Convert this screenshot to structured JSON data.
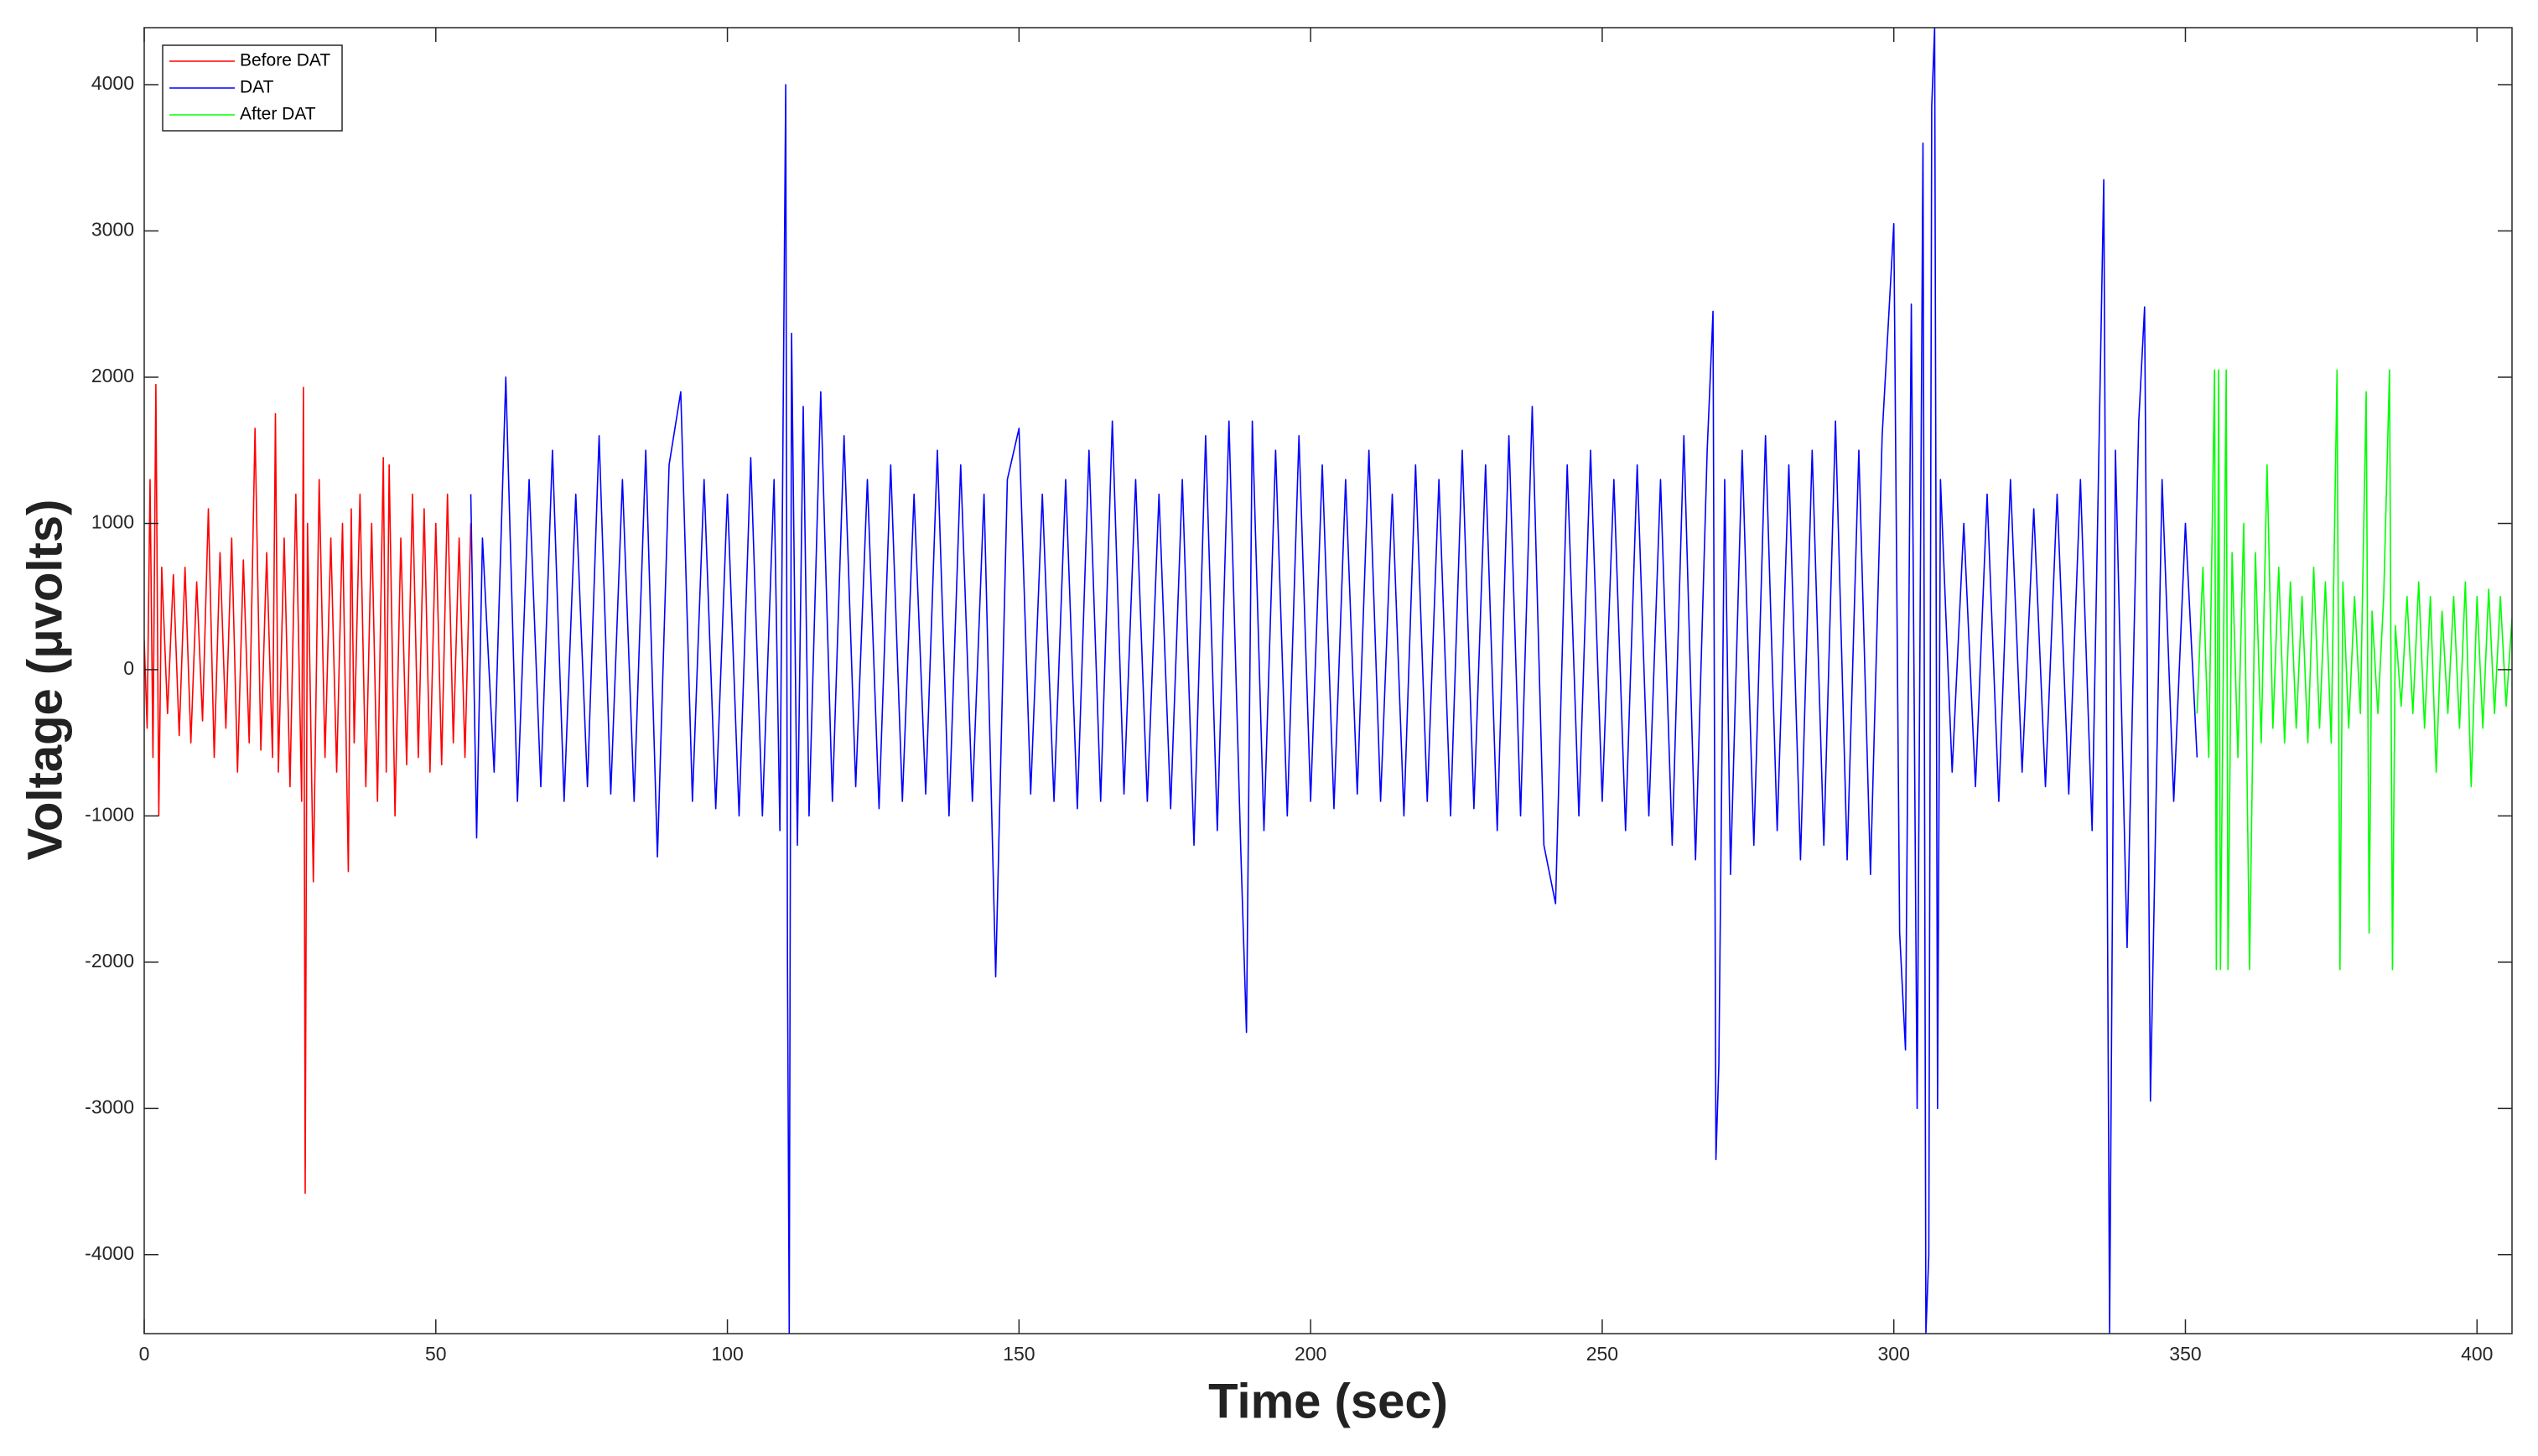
{
  "chart_data": {
    "type": "line",
    "xlabel": "Time (sec)",
    "ylabel": "Voltage (μvolts)",
    "xlim": [
      0,
      406
    ],
    "ylim": [
      -4540,
      4390
    ],
    "xticks": [
      0,
      50,
      100,
      150,
      200,
      250,
      300,
      350,
      400
    ],
    "yticks": [
      -4000,
      -3000,
      -2000,
      -1000,
      0,
      1000,
      2000,
      3000,
      4000
    ],
    "legend": "upper left",
    "series": [
      {
        "name": "Before DAT",
        "color": "#ff0000",
        "x": [
          0,
          0.5,
          1,
          1.5,
          2,
          2.5,
          3,
          4,
          5,
          6,
          7,
          8,
          9,
          10,
          11,
          12,
          13,
          14,
          15,
          16,
          17,
          18,
          19,
          20,
          21,
          22,
          22.5,
          23,
          24,
          25,
          26,
          27,
          27.3,
          27.6,
          28,
          29,
          30,
          31,
          32,
          33,
          34,
          35,
          35.5,
          36,
          37,
          38,
          39,
          40,
          41,
          41.5,
          42,
          43,
          44,
          45,
          46,
          47,
          48,
          49,
          50,
          51,
          52,
          53,
          54,
          55,
          56
        ],
        "values": [
          200,
          -400,
          1300,
          -600,
          1950,
          -1000,
          700,
          -300,
          650,
          -450,
          700,
          -500,
          600,
          -350,
          1100,
          -600,
          800,
          -400,
          900,
          -700,
          750,
          -500,
          1650,
          -550,
          800,
          -600,
          1750,
          -700,
          900,
          -800,
          1200,
          -900,
          1930,
          -3580,
          1000,
          -1450,
          1300,
          -600,
          900,
          -700,
          1000,
          -1380,
          1100,
          -500,
          1200,
          -800,
          1000,
          -900,
          1450,
          -700,
          1400,
          -1000,
          900,
          -650,
          1200,
          -600,
          1100,
          -700,
          1000,
          -650,
          1200,
          -500,
          900,
          -600,
          1000
        ]
      },
      {
        "name": "DAT",
        "color": "#0000ff",
        "x": [
          56,
          57,
          58,
          60,
          62,
          64,
          66,
          68,
          70,
          72,
          74,
          76,
          78,
          80,
          82,
          84,
          86,
          88,
          90,
          92,
          94,
          96,
          98,
          100,
          102,
          104,
          106,
          108,
          109,
          110,
          110.3,
          110.6,
          111,
          112,
          113,
          114,
          116,
          118,
          120,
          122,
          124,
          126,
          128,
          130,
          132,
          134,
          136,
          138,
          140,
          142,
          144,
          146,
          148,
          150,
          152,
          154,
          156,
          158,
          160,
          162,
          164,
          166,
          168,
          170,
          172,
          174,
          176,
          178,
          180,
          182,
          184,
          186,
          188,
          189,
          190,
          192,
          194,
          196,
          198,
          200,
          202,
          204,
          206,
          208,
          210,
          212,
          214,
          216,
          218,
          220,
          222,
          224,
          226,
          228,
          230,
          232,
          234,
          236,
          238,
          240,
          242,
          244,
          246,
          248,
          250,
          252,
          254,
          256,
          258,
          260,
          262,
          264,
          266,
          268,
          269,
          269.5,
          270,
          271,
          272,
          274,
          276,
          278,
          280,
          282,
          284,
          286,
          288,
          290,
          292,
          294,
          296,
          298,
          300,
          301,
          302,
          303,
          304,
          305,
          305.5,
          306,
          306.5,
          307,
          307.5,
          308,
          310,
          312,
          314,
          316,
          318,
          320,
          322,
          324,
          326,
          328,
          330,
          332,
          334,
          336,
          337,
          338,
          340,
          342,
          343,
          344,
          346,
          348,
          350,
          352
        ],
        "values": [
          1200,
          -1150,
          900,
          -700,
          2000,
          -900,
          1300,
          -800,
          1500,
          -900,
          1200,
          -800,
          1600,
          -850,
          1300,
          -900,
          1500,
          -1280,
          1400,
          1900,
          -900,
          1300,
          -950,
          1200,
          -1000,
          1450,
          -1000,
          1300,
          -1100,
          4000,
          -2000,
          -4540,
          2300,
          -1200,
          1800,
          -1000,
          1900,
          -900,
          1600,
          -800,
          1300,
          -950,
          1400,
          -900,
          1200,
          -850,
          1500,
          -1000,
          1400,
          -900,
          1200,
          -2100,
          1300,
          1650,
          -850,
          1200,
          -900,
          1300,
          -950,
          1500,
          -900,
          1700,
          -850,
          1300,
          -900,
          1200,
          -950,
          1300,
          -1200,
          1600,
          -1100,
          1700,
          -1200,
          -2480,
          1700,
          -1100,
          1500,
          -1000,
          1600,
          -900,
          1400,
          -950,
          1300,
          -850,
          1500,
          -900,
          1200,
          -1000,
          1400,
          -900,
          1300,
          -1000,
          1500,
          -950,
          1400,
          -1100,
          1600,
          -1000,
          1800,
          -1200,
          -1600,
          1400,
          -1000,
          1500,
          -900,
          1300,
          -1100,
          1400,
          -1000,
          1300,
          -1200,
          1600,
          -1300,
          1500,
          2450,
          -3350,
          -2700,
          1300,
          -1400,
          1500,
          -1200,
          1600,
          -1100,
          1400,
          -1300,
          1500,
          -1200,
          1700,
          -1300,
          1500,
          -1400,
          1600,
          3050,
          -1800,
          -2600,
          2500,
          -3000,
          3600,
          -4540,
          -4000,
          3850,
          4390,
          -3000,
          1300,
          -700,
          1000,
          -800,
          1200,
          -900,
          1300,
          -700,
          1100,
          -800,
          1200,
          -850,
          1300,
          -1100,
          3350,
          -4540,
          1500,
          -1900,
          1700,
          2480,
          -2950,
          1300,
          -900,
          1000,
          -600
        ]
      },
      {
        "name": "After DAT",
        "color": "#00ff00",
        "x": [
          352,
          353,
          354,
          355,
          355.3,
          355.7,
          356,
          357,
          357.3,
          358,
          359,
          360,
          361,
          362,
          363,
          364,
          365,
          366,
          367,
          368,
          369,
          370,
          371,
          372,
          373,
          374,
          375,
          376,
          376.5,
          377,
          378,
          379,
          380,
          381,
          381.5,
          382,
          383,
          384,
          385,
          385.5,
          386,
          387,
          388,
          389,
          390,
          391,
          392,
          393,
          394,
          395,
          396,
          397,
          398,
          399,
          400,
          401,
          402,
          403,
          404,
          405,
          406
        ],
        "values": [
          -300,
          700,
          -600,
          2050,
          -2050,
          2050,
          -2050,
          2050,
          -2050,
          800,
          -600,
          1000,
          -2050,
          800,
          -500,
          1400,
          -400,
          700,
          -500,
          600,
          -400,
          500,
          -500,
          700,
          -400,
          600,
          -500,
          2050,
          -2050,
          600,
          -400,
          500,
          -300,
          1900,
          -1800,
          400,
          -300,
          500,
          2050,
          -2050,
          300,
          -250,
          500,
          -300,
          600,
          -400,
          500,
          -700,
          400,
          -300,
          500,
          -400,
          600,
          -800,
          500,
          -400,
          550,
          -300,
          500,
          -250,
          350
        ]
      }
    ]
  }
}
